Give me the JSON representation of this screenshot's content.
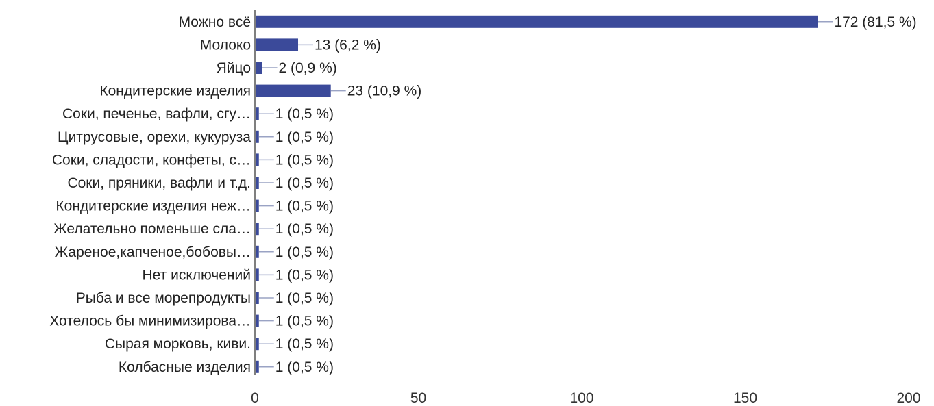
{
  "chart_data": {
    "type": "bar",
    "orientation": "horizontal",
    "categories": [
      "Можно всё",
      "Молоко",
      "Яйцо",
      "Кондитерские изделия",
      "Соки, печенье, вафли, сгу…",
      "Цитрусовые, орехи, кукуруза",
      "Соки, сладости, конфеты, с…",
      "Соки, пряники, вафли и т.д.",
      "Кондитерские изделия неж…",
      "Желательно поменьше сла…",
      "Жареное,капченое,бобовы…",
      "Нет исключений",
      "Рыба и все морепродукты",
      "Хотелось бы минимизирова…",
      "Сырая морковь, киви.",
      "Колбасные изделия"
    ],
    "values": [
      172,
      13,
      2,
      23,
      1,
      1,
      1,
      1,
      1,
      1,
      1,
      1,
      1,
      1,
      1,
      1
    ],
    "value_labels": [
      "172 (81,5 %)",
      "13 (6,2 %)",
      "2 (0,9 %)",
      "23 (10,9 %)",
      "1 (0,5 %)",
      "1 (0,5 %)",
      "1 (0,5 %)",
      "1 (0,5 %)",
      "1 (0,5 %)",
      "1 (0,5 %)",
      "1 (0,5 %)",
      "1 (0,5 %)",
      "1 (0,5 %)",
      "1 (0,5 %)",
      "1 (0,5 %)",
      "1 (0,5 %)"
    ],
    "xlim": [
      0,
      200
    ],
    "xticks": [
      0,
      50,
      100,
      150,
      200
    ],
    "xtick_labels": [
      "0",
      "50",
      "100",
      "150",
      "200"
    ],
    "grid": false,
    "legend": "none",
    "bar_color": "#3b4a9a",
    "leader_color": "#9aa3c4",
    "axis_color": "#555555"
  }
}
